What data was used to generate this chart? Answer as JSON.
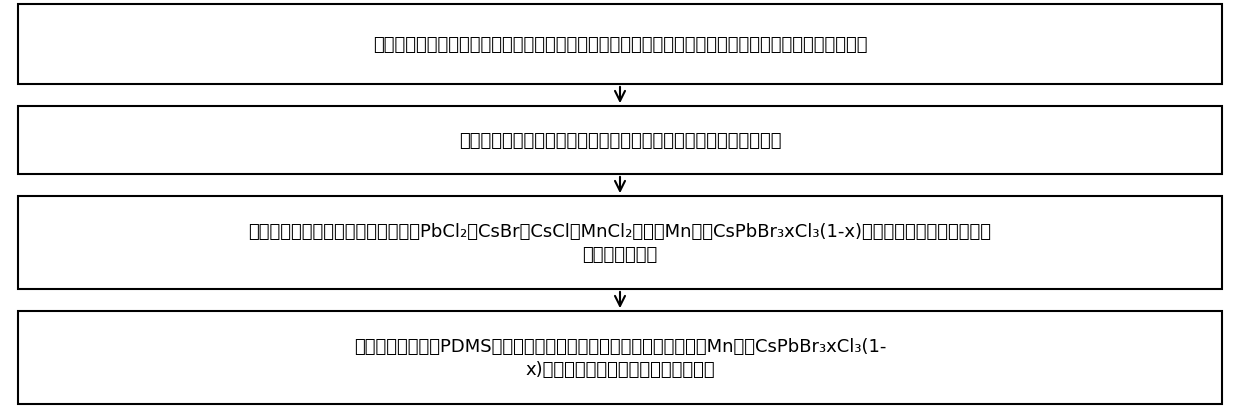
{
  "box1_line1": "用清洗剂、丙酮、乙醇和去离子水对硅基底进行超声清洗，并用氮气吹干，接着对基底进行紫外臭氧处理",
  "box2_line1": "采用光刻套刻工艺和蒸发镀膜工艺在硅基底上制备规律排布的金电极",
  "box3_line1": "在高真空条件下分别蒸镀一定厚度的PbCl₂、CsBr、CsCl和MnCl₂层制备Mn掺杂CsPbBr₃xCl₃(1-x)紫外探测薄膜，并进行后退",
  "box3_line2": "火促进薄膜结晶",
  "box4_line1": "采用滴涂方式制备PDMS封装层，再对其进行加热烘干，由此完成基于Mn掺杂CsPbBr₃xCl₃(1-",
  "box4_line2": "x)纳米晶薄膜的紫外光电探测器的制备",
  "box_color": "#ffffff",
  "border_color": "#000000",
  "arrow_color": "#000000",
  "text_color": "#000000",
  "bg_color": "#ffffff",
  "fontsize": 13
}
